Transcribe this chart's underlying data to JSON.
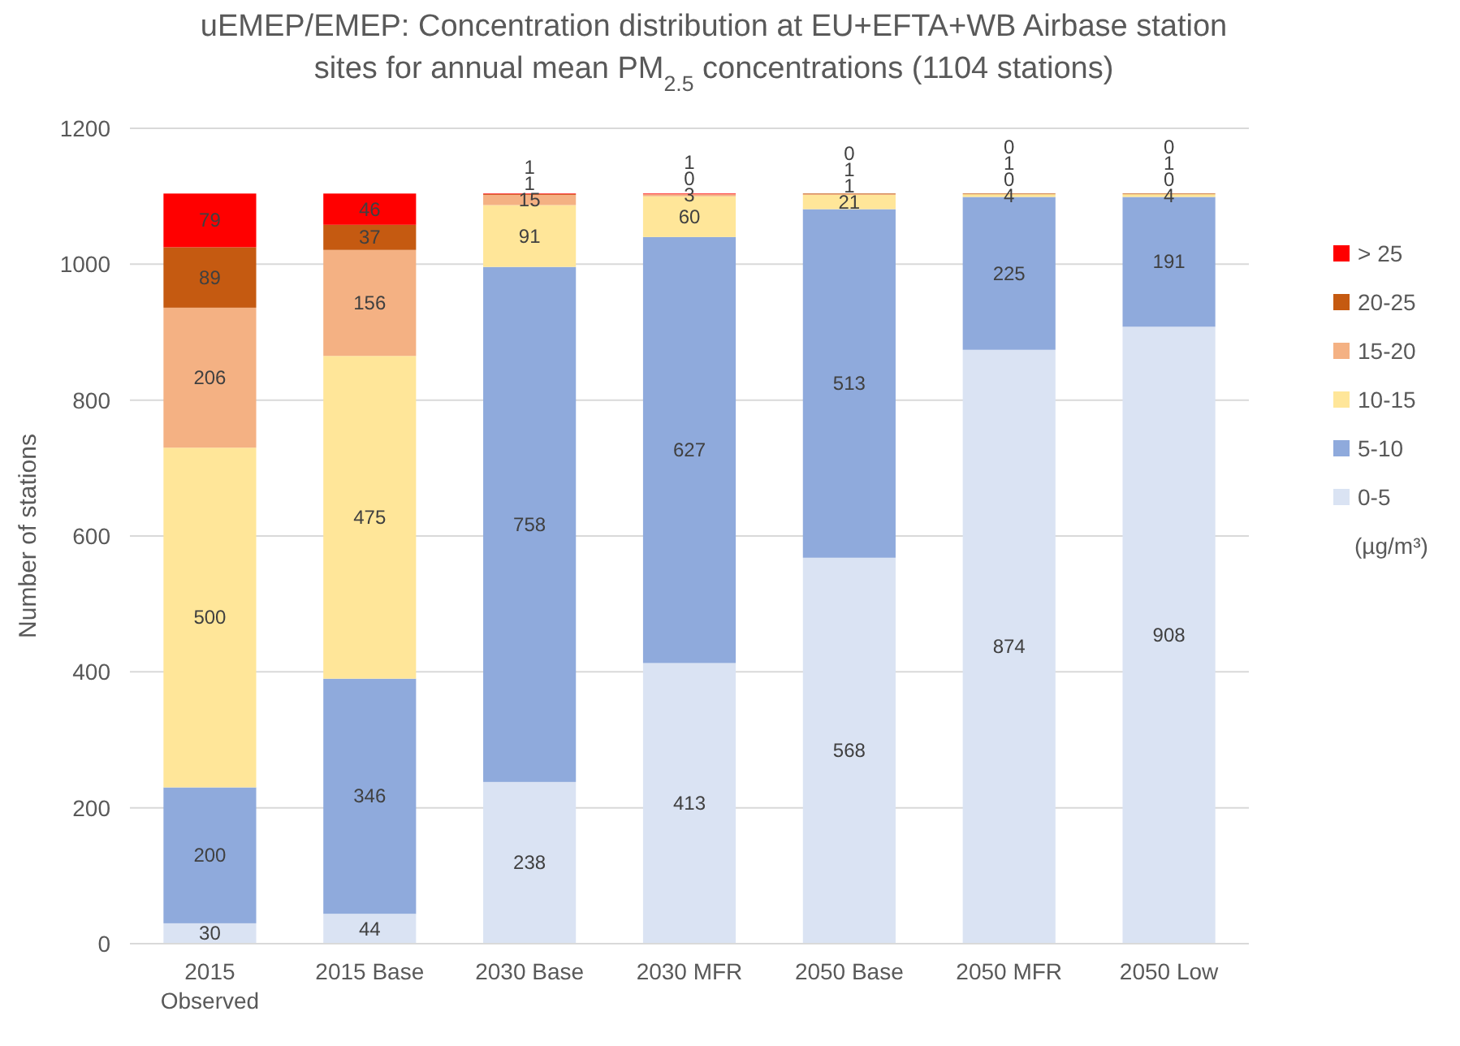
{
  "chart_data": {
    "type": "bar",
    "stacked": true,
    "title": "uEMEP/EMEP: Concentration distribution at EU+EFTA+WB Airbase station sites for annual mean PM$_{2.5}$ concentrations (1104 stations)",
    "ylabel": "Number of stations",
    "categories": [
      "2015 Observed",
      "2015 Base",
      "2030 Base",
      "2030 MFR",
      "2050 Base",
      "2050 MFR",
      "2050 Low"
    ],
    "series": [
      {
        "name": "0-5",
        "color": "#dae3f3",
        "values": [
          30,
          44,
          238,
          413,
          568,
          874,
          908
        ]
      },
      {
        "name": "5-10",
        "color": "#8faadc",
        "values": [
          200,
          346,
          758,
          627,
          513,
          225,
          191
        ]
      },
      {
        "name": "10-15",
        "color": "#ffe699",
        "values": [
          500,
          475,
          91,
          60,
          21,
          4,
          4
        ]
      },
      {
        "name": "15-20",
        "color": "#f4b183",
        "values": [
          206,
          156,
          15,
          3,
          1,
          0,
          0
        ]
      },
      {
        "name": "20-25",
        "color": "#c55a11",
        "values": [
          89,
          37,
          1,
          0,
          1,
          1,
          1
        ]
      },
      {
        "name": "> 25",
        "color": "#ff0000",
        "values": [
          79,
          46,
          1,
          1,
          0,
          0,
          0
        ]
      }
    ],
    "ylim": [
      0,
      1200
    ],
    "yticks": [
      0,
      200,
      400,
      600,
      800,
      1000,
      1200
    ],
    "grid": "y",
    "legend": "right",
    "data_labels": true,
    "annotations": [
      "(µg/m³)"
    ]
  }
}
